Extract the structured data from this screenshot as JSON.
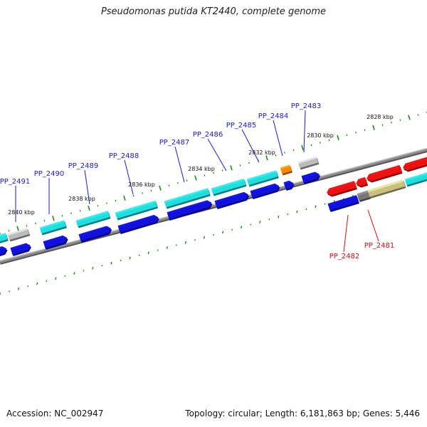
{
  "title": "Pseudomonas putida KT2440, complete genome",
  "footer": {
    "accession_label": "Accession:",
    "accession": "NC_002947",
    "topology_label": "Topology:",
    "topology": "circular;",
    "length_label": "Length:",
    "length": "6,181,863 bp;",
    "genes_label": "Genes:",
    "genes": "5,446"
  },
  "colors": {
    "forward_label": "#1a1acc",
    "reverse_label": "#cc1111",
    "tick": "#1a8a1a",
    "backbone": "#8a8a8a",
    "cds_cyan": "#22dddd",
    "cds_blue": "#1111dd",
    "cds_red": "#ee1111",
    "cds_grey": "#bbbbbb",
    "cds_orange": "#ff8800",
    "cds_olive": "#c8c080"
  },
  "scale_labels": [
    "2828 kbp",
    "2830 kbp",
    "2832 kbp",
    "2834 kbp",
    "2836 kbp",
    "2838 kbp",
    "2840 kbp"
  ],
  "gene_labels": {
    "forward": [
      "PP_2483",
      "PP_2484",
      "PP_2485",
      "PP_2486",
      "PP_2487",
      "PP_2488",
      "PP_2489",
      "PP_2490",
      "PP_2491"
    ],
    "reverse": [
      "PP_2481",
      "PP_2482"
    ]
  }
}
